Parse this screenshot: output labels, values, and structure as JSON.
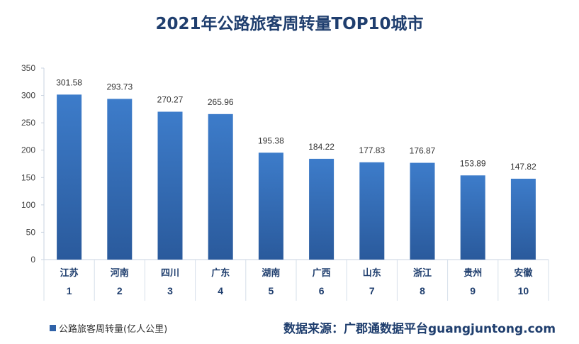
{
  "chart_data": {
    "type": "bar",
    "title": "2021年公路旅客周转量TOP10城市",
    "categories": [
      "江苏",
      "河南",
      "四川",
      "广东",
      "湖南",
      "广西",
      "山东",
      "浙江",
      "贵州",
      "安徽"
    ],
    "ranks": [
      "1",
      "2",
      "3",
      "4",
      "5",
      "6",
      "7",
      "8",
      "9",
      "10"
    ],
    "values": [
      301.58,
      293.73,
      270.27,
      265.96,
      195.38,
      184.22,
      177.83,
      176.87,
      153.89,
      147.82
    ],
    "value_labels": [
      "301.58",
      "293.73",
      "270.27",
      "265.96",
      "195.38",
      "184.22",
      "177.83",
      "176.87",
      "153.89",
      "147.82"
    ],
    "ylim": [
      0,
      350
    ],
    "yticks": [
      "0",
      "50",
      "100",
      "150",
      "200",
      "250",
      "300",
      "350"
    ],
    "xlabel": "",
    "ylabel": "",
    "grid": false,
    "legend": {
      "label": "公路旅客周转量(亿人公里)",
      "placement": "bottom-left"
    },
    "colors": {
      "bar_top": "#3d7cca",
      "bar_bottom": "#2a5a9c",
      "title": "#1f3e6e"
    }
  },
  "source": "数据来源：广郡通数据平台guangjuntong.com"
}
